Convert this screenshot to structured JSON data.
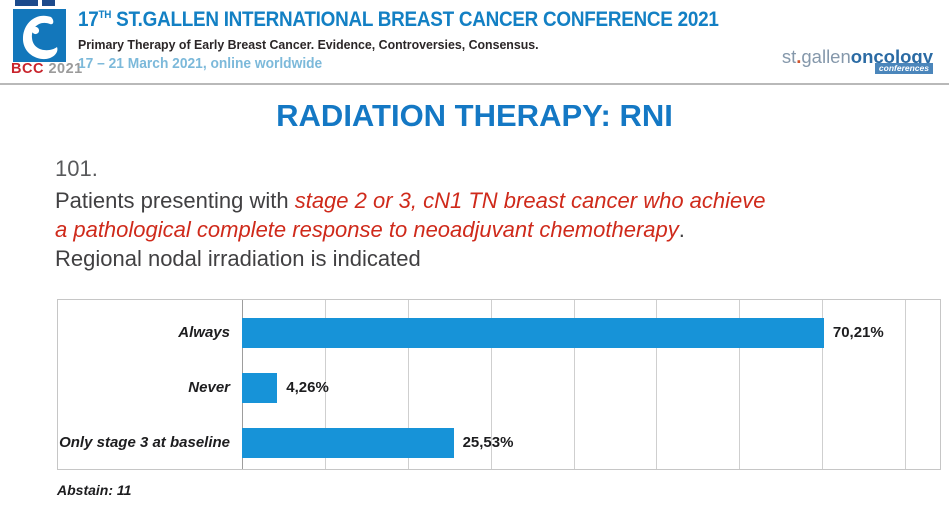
{
  "header": {
    "logo": {
      "bcc": "BCC",
      "year": "2021"
    },
    "title_num": "17",
    "title_sup": "TH",
    "title_rest": " ST.GALLEN INTERNATIONAL BREAST CANCER CONFERENCE 2021",
    "subtitle": "Primary Therapy of Early Breast Cancer. Evidence, Controversies, Consensus.",
    "dates": "17 – 21 March 2021, online worldwide",
    "right_logo": {
      "part1": "st",
      "dot": ".",
      "part2": "gallen",
      "part3": "oncology",
      "badge": "conferences"
    }
  },
  "slide": {
    "title": "RADIATION THERAPY: RNI",
    "question_number": "101.",
    "q_line1_black": "Patients presenting with ",
    "q_line1_red": "stage 2 or 3, cN1 TN breast cancer who achieve",
    "q_line2_red": "a pathological complete response to neoadjuvant chemotherapy",
    "q_line2_black": ".",
    "q_line3": "Regional nodal irradiation is indicated"
  },
  "chart_data": {
    "type": "bar",
    "orientation": "horizontal",
    "categories": [
      "Always",
      "Never",
      "Only stage 3 at baseline"
    ],
    "values": [
      70.21,
      4.26,
      25.53
    ],
    "value_labels": [
      "70,21%",
      "4,26%",
      "25,53%"
    ],
    "xlim": [
      0,
      80
    ],
    "gridline_step": 10,
    "grid": true,
    "legend": false,
    "bar_color": "#1793d8",
    "footnote": "Abstain: 11"
  },
  "icons": {
    "bcc_logo": "breast-drop-icon",
    "sg_badge": "conferences-badge"
  },
  "colors": {
    "header_blue": "#1380c4",
    "slide_title_blue": "#1478c4",
    "question_red": "#cf2a1b",
    "question_dark": "#414042",
    "bar_blue": "#1793d8",
    "bcc_red": "#c8242c",
    "date_light_blue": "#7cb9da"
  }
}
